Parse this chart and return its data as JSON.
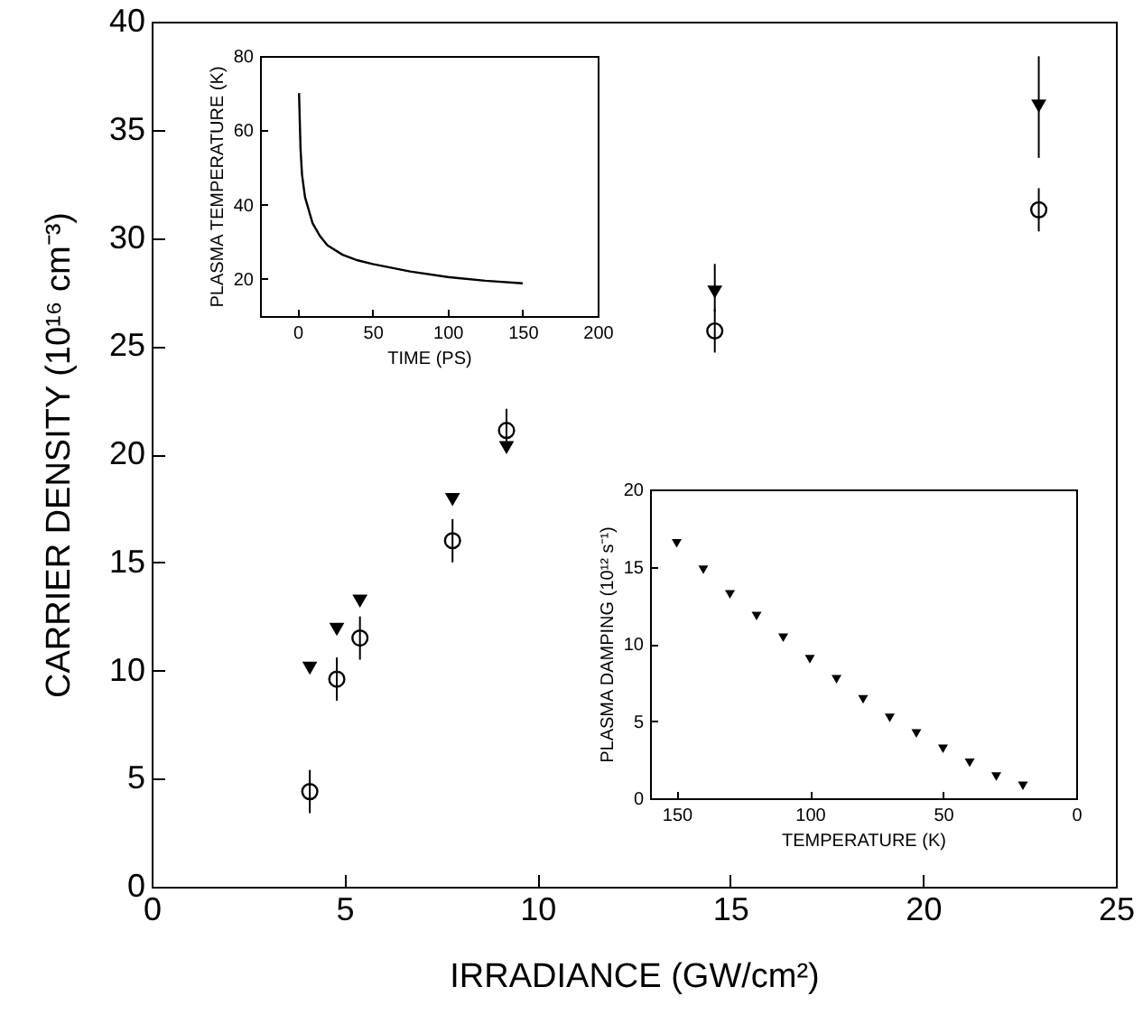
{
  "chart_data": [
    {
      "type": "scatter",
      "xlabel": "IRRADIANCE (GW/cm²)",
      "ylabel": "CARRIER DENSITY (10¹⁶ cm⁻³)",
      "x": [
        4.1,
        4.8,
        5.4,
        7.8,
        9.2,
        14.6,
        23.0
      ],
      "series": [
        {
          "color": "#000000",
          "marker": "circle",
          "values": [
            4.4,
            9.6,
            11.5,
            16.0,
            21.1,
            25.7,
            31.3
          ],
          "errors": [
            1,
            1,
            1,
            1,
            1,
            1,
            1
          ]
        },
        {
          "color": "#000000",
          "marker": "triangle",
          "values": [
            10.1,
            11.9,
            13.2,
            17.9,
            20.3,
            27.5,
            36.1
          ],
          "errors": [
            null,
            null,
            null,
            null,
            null,
            [
              26.6,
              28.8
            ],
            [
              33.7,
              38.4
            ]
          ]
        }
      ],
      "xlim": [
        0,
        25
      ],
      "ylim": [
        0,
        40
      ],
      "xticks": [
        0,
        5,
        10,
        15,
        20,
        25
      ],
      "yticks": [
        0,
        5,
        10,
        15,
        20,
        25,
        30,
        35,
        40
      ],
      "grid": false
    },
    {
      "type": "line",
      "xlabel": "TIME (PS)",
      "ylabel": "PLASMA TEMPERATURE (K)",
      "x": [
        1,
        2,
        3,
        5,
        10,
        15,
        20,
        30,
        40,
        50,
        75,
        100,
        125,
        150
      ],
      "series": [
        {
          "color": "#000000",
          "values": [
            70,
            55,
            48,
            42,
            35,
            31.5,
            29,
            26.5,
            25,
            24,
            22,
            20.5,
            19.5,
            18.8
          ]
        }
      ],
      "xlim": [
        -25,
        200
      ],
      "ylim": [
        10,
        80
      ],
      "xticks": [
        0,
        50,
        100,
        150,
        200
      ],
      "yticks": [
        20,
        40,
        60,
        80
      ],
      "grid": false,
      "line_style": "solid"
    },
    {
      "type": "scatter",
      "xlabel": "TEMPERATURE (K)",
      "ylabel": "PLASMA DAMPING (10¹² s⁻¹)",
      "x": [
        150,
        140,
        130,
        120,
        110,
        100,
        90,
        80,
        70,
        60,
        50,
        40,
        30,
        20
      ],
      "series": [
        {
          "color": "#000000",
          "marker": "triangle",
          "values": [
            16.5,
            14.8,
            13.2,
            11.8,
            10.4,
            9.0,
            7.7,
            6.4,
            5.2,
            4.2,
            3.2,
            2.3,
            1.4,
            0.8
          ]
        }
      ],
      "xlim": [
        160,
        0
      ],
      "ylim": [
        0,
        20
      ],
      "xticks": [
        150,
        100,
        50,
        0
      ],
      "yticks": [
        0,
        5,
        10,
        15,
        20
      ],
      "grid": false
    }
  ]
}
